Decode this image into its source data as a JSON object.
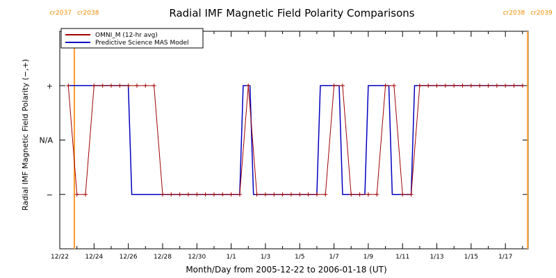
{
  "chart_data": {
    "type": "line",
    "title": "Radial IMF Magnetic Field Polarity Comparisons",
    "xlabel": "Month/Day from 2005-12-22 to 2006-01-18 (UT)",
    "ylabel": "Radial IMF Magnetic Field Polarity (−,+)",
    "x_unit": "days from 2005-12-22 00:00 UT",
    "xlim": [
      0,
      27.33
    ],
    "ylim": [
      -2,
      2
    ],
    "y_levels": {
      "+": 1,
      "N/A": 0,
      "−": -1
    },
    "grid": false,
    "legend_position": "top-left",
    "x_tick_labels": [
      {
        "x": 0,
        "label": "12/22"
      },
      {
        "x": 2,
        "label": "12/24"
      },
      {
        "x": 4,
        "label": "12/26"
      },
      {
        "x": 6,
        "label": "12/28"
      },
      {
        "x": 8,
        "label": "12/30"
      },
      {
        "x": 10,
        "label": "1/1"
      },
      {
        "x": 12,
        "label": "1/3"
      },
      {
        "x": 14,
        "label": "1/5"
      },
      {
        "x": 16,
        "label": "1/7"
      },
      {
        "x": 18,
        "label": "1/9"
      },
      {
        "x": 20,
        "label": "1/11"
      },
      {
        "x": 22,
        "label": "1/13"
      },
      {
        "x": 24,
        "label": "1/15"
      },
      {
        "x": 26,
        "label": "1/17"
      }
    ],
    "y_tick_labels": [
      {
        "y": 1,
        "label": "+"
      },
      {
        "y": 0,
        "label": "N/A"
      },
      {
        "y": -1,
        "label": "−"
      }
    ],
    "carrington_markers": [
      {
        "x": 0.85,
        "left_label": "cr2037",
        "right_label": "cr2038"
      },
      {
        "x": 27.3,
        "left_label": "cr2038",
        "right_label": "cr2039"
      }
    ],
    "series": [
      {
        "name": "OMNI_M (12-hr avg)",
        "color": "#a00000",
        "markers": true,
        "x": [
          0.5,
          1.0,
          1.5,
          2.0,
          2.5,
          3.0,
          3.5,
          4.0,
          4.5,
          5.0,
          5.5,
          6.0,
          6.5,
          7.0,
          7.5,
          8.0,
          8.5,
          9.0,
          9.5,
          10.0,
          10.5,
          11.0,
          11.5,
          12.0,
          12.5,
          13.0,
          13.5,
          14.0,
          14.5,
          15.0,
          15.5,
          16.0,
          16.5,
          17.0,
          17.5,
          18.0,
          18.5,
          19.0,
          19.5,
          20.0,
          20.5,
          21.0,
          21.5,
          22.0,
          22.5,
          23.0,
          23.5,
          24.0,
          24.5,
          25.0,
          25.5,
          26.0,
          26.5,
          27.0
        ],
        "y": [
          1,
          -1,
          -1,
          1,
          1,
          1,
          1,
          1,
          1,
          1,
          1,
          -1,
          -1,
          -1,
          -1,
          -1,
          -1,
          -1,
          -1,
          -1,
          -1,
          1,
          -1,
          -1,
          -1,
          -1,
          -1,
          -1,
          -1,
          -1,
          -1,
          1,
          1,
          -1,
          -1,
          -1,
          -1,
          1,
          1,
          -1,
          -1,
          1,
          1,
          1,
          1,
          1,
          1,
          1,
          1,
          1,
          1,
          1,
          1,
          1
        ]
      },
      {
        "name": "Predictive Science MAS Model",
        "color": "#0000c0",
        "markers": false,
        "x": [
          0.5,
          4.0,
          4.2,
          10.5,
          10.7,
          11.1,
          11.3,
          15.0,
          15.2,
          16.3,
          16.5,
          17.8,
          18.0,
          19.2,
          19.4,
          20.5,
          20.7,
          27.0
        ],
        "y": [
          1,
          1,
          -1,
          -1,
          1,
          1,
          -1,
          -1,
          1,
          1,
          -1,
          -1,
          1,
          1,
          -1,
          -1,
          1,
          1
        ]
      }
    ]
  }
}
